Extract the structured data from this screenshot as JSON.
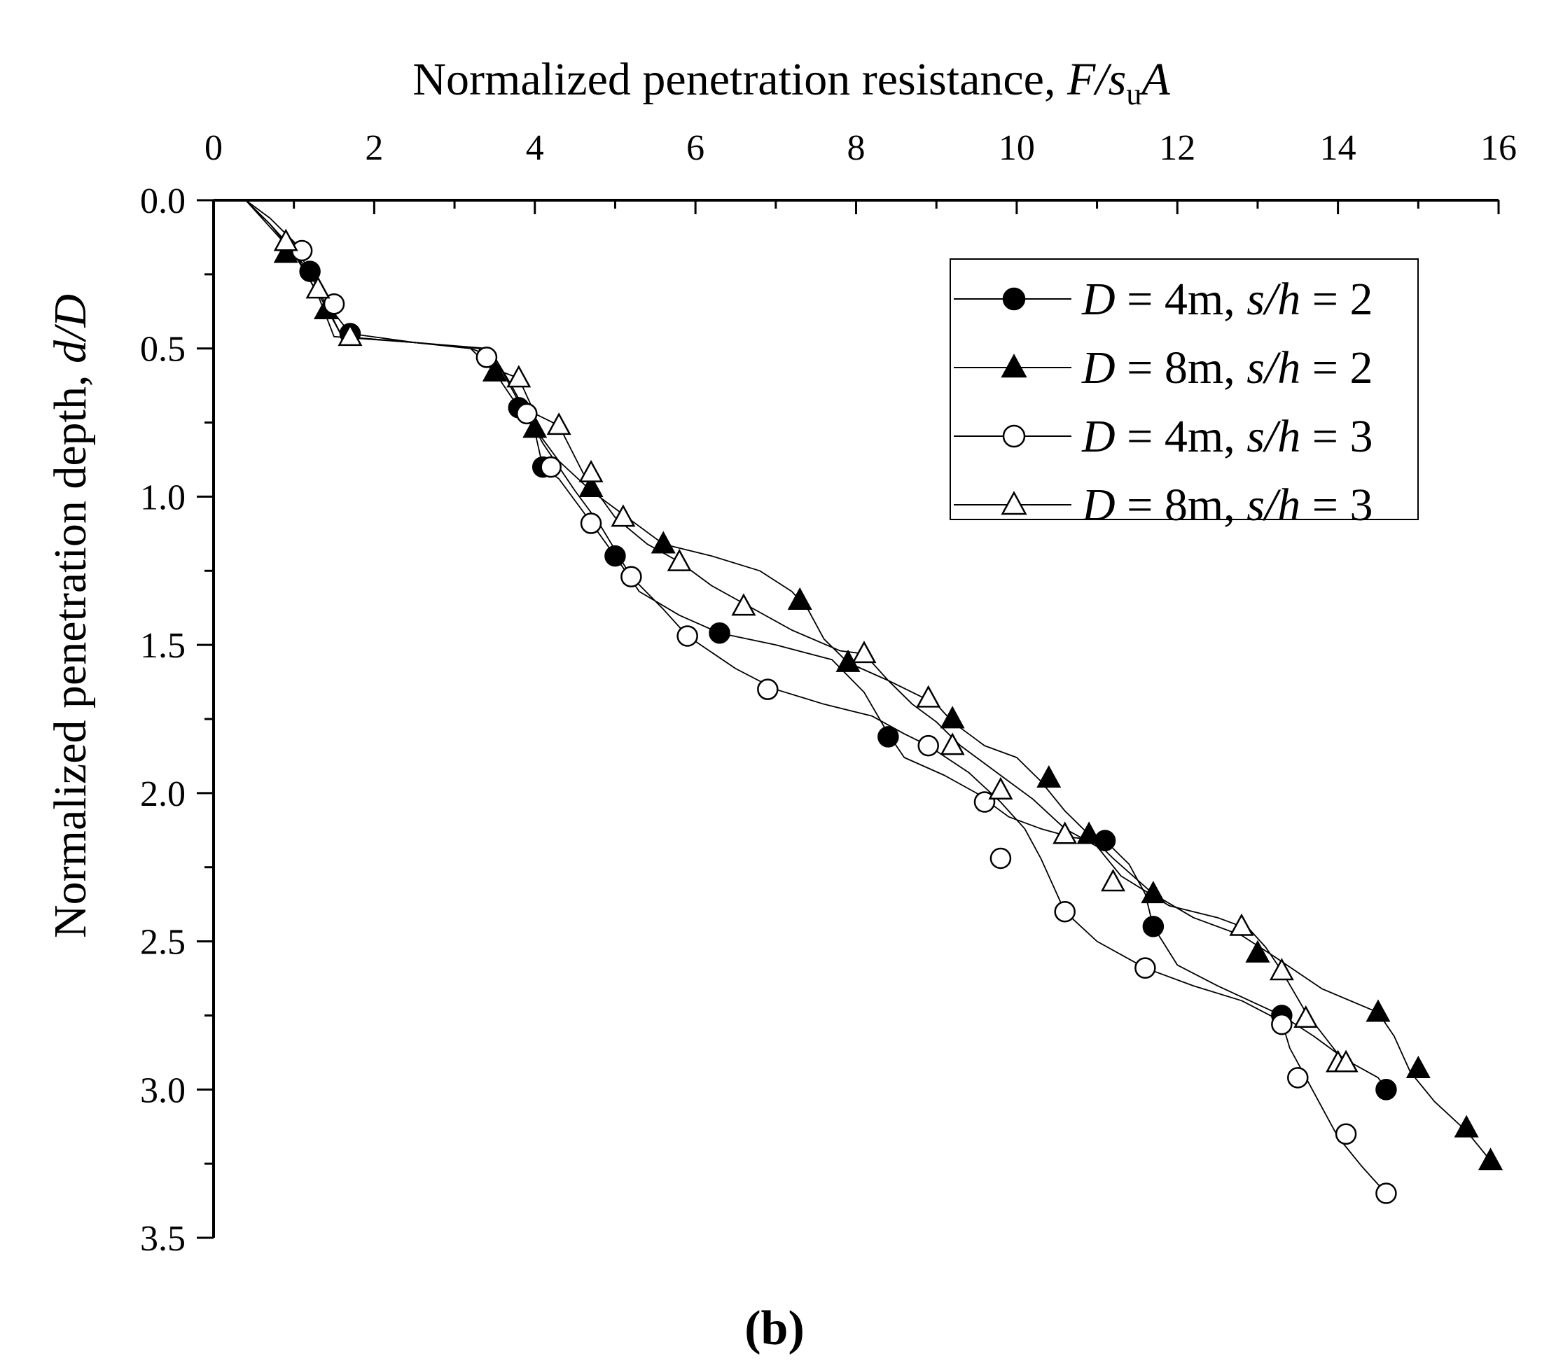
{
  "chart_data": {
    "type": "line",
    "panel_label": "(b)",
    "xaxis": {
      "title_prefix": "Normalized penetration resistance, ",
      "title_symbol": "F/s",
      "title_sub": "u",
      "title_suffix": "A",
      "position": "top",
      "range": [
        0,
        16
      ],
      "ticks": [
        0,
        2,
        4,
        6,
        8,
        10,
        12,
        14,
        16
      ],
      "tick_labels": [
        "0",
        "2",
        "4",
        "6",
        "8",
        "10",
        "12",
        "14",
        "16"
      ]
    },
    "yaxis": {
      "title_prefix": "Normalized penetration depth, ",
      "title_symbol": "d/D",
      "inverted": true,
      "range": [
        0,
        3.5
      ],
      "ticks": [
        0,
        0.5,
        1.0,
        1.5,
        2.0,
        2.5,
        3.0,
        3.5
      ],
      "tick_labels": [
        "0.0",
        "0.5",
        "1.0",
        "1.5",
        "2.0",
        "2.5",
        "3.0",
        "3.5"
      ]
    },
    "grid": false,
    "legend": {
      "placement": "top-right",
      "entries": [
        {
          "D": "D",
          "eq1": " = 4m, ",
          "sh": "s/h",
          "eq2": " = 2"
        },
        {
          "D": "D",
          "eq1": " = 8m, ",
          "sh": "s/h",
          "eq2": " = 2"
        },
        {
          "D": "D",
          "eq1": " = 4m, ",
          "sh": "s/h",
          "eq2": " = 3"
        },
        {
          "D": "D",
          "eq1": " = 8m, ",
          "sh": "s/h",
          "eq2": " = 3"
        }
      ]
    },
    "series": [
      {
        "name": "D = 4m, s/h = 2",
        "marker": "circle-filled",
        "x": [
          0,
          0.4,
          0.8,
          1.2,
          1.5,
          1.7,
          2.5,
          3.3,
          3.6,
          3.8,
          4.0,
          4.1,
          4.3,
          4.6,
          5.0,
          5.3,
          5.8,
          6.3,
          7.0,
          7.7,
          8.1,
          8.4,
          8.6,
          9.1,
          9.5,
          9.9,
          10.3,
          10.7,
          11.1,
          11.4,
          11.6,
          11.7,
          12.0,
          12.5,
          12.9,
          13.3,
          13.7,
          14.1,
          14.5,
          14.6
        ],
        "y": [
          0,
          0.0,
          0.12,
          0.24,
          0.38,
          0.45,
          0.48,
          0.5,
          0.58,
          0.68,
          0.78,
          0.9,
          0.94,
          1.05,
          1.2,
          1.32,
          1.4,
          1.46,
          1.5,
          1.55,
          1.66,
          1.8,
          1.88,
          1.94,
          2.0,
          2.08,
          2.12,
          2.15,
          2.16,
          2.24,
          2.34,
          2.45,
          2.58,
          2.65,
          2.7,
          2.75,
          2.82,
          2.9,
          2.96,
          3.0
        ],
        "markers_x": [
          1.2,
          1.7,
          3.8,
          4.1,
          5.0,
          6.3,
          8.4,
          11.1,
          11.7,
          13.3,
          14.6
        ],
        "markers_y": [
          0.24,
          0.45,
          0.7,
          0.9,
          1.2,
          1.46,
          1.81,
          2.16,
          2.45,
          2.75,
          3.0
        ]
      },
      {
        "name": "D = 8m, s/h = 2",
        "marker": "triangle-filled",
        "x": [
          0,
          0.4,
          0.7,
          1.0,
          1.4,
          1.6,
          2.5,
          3.2,
          3.5,
          3.8,
          4.0,
          4.3,
          4.7,
          5.2,
          5.6,
          6.2,
          6.8,
          7.2,
          7.4,
          7.6,
          7.9,
          8.4,
          9.0,
          9.2,
          9.6,
          10.0,
          10.3,
          10.6,
          10.9,
          11.2,
          11.7,
          12.2,
          12.8,
          13.2,
          13.8,
          14.5,
          14.7,
          14.9,
          15.2,
          15.6,
          15.9
        ],
        "y": [
          0,
          0.0,
          0.08,
          0.18,
          0.36,
          0.46,
          0.48,
          0.5,
          0.58,
          0.7,
          0.77,
          0.88,
          0.98,
          1.08,
          1.16,
          1.2,
          1.25,
          1.32,
          1.38,
          1.48,
          1.56,
          1.62,
          1.7,
          1.76,
          1.84,
          1.88,
          1.96,
          2.06,
          2.14,
          2.22,
          2.34,
          2.42,
          2.48,
          2.55,
          2.66,
          2.74,
          2.82,
          2.94,
          3.04,
          3.14,
          3.24
        ],
        "markers_x": [
          0.9,
          1.4,
          3.5,
          4.0,
          4.7,
          5.6,
          7.3,
          7.9,
          9.2,
          10.4,
          10.9,
          11.7,
          13.0,
          14.5,
          15.0,
          15.6,
          15.9
        ],
        "markers_y": [
          0.18,
          0.37,
          0.58,
          0.77,
          0.97,
          1.16,
          1.35,
          1.56,
          1.75,
          1.95,
          2.14,
          2.34,
          2.54,
          2.74,
          2.93,
          3.13,
          3.24
        ]
      },
      {
        "name": "D = 4m, s/h = 3",
        "marker": "circle-open",
        "x": [
          0,
          0.4,
          0.7,
          1.0,
          1.3,
          1.5,
          2.5,
          3.2,
          3.5,
          3.7,
          3.9,
          4.1,
          4.3,
          4.5,
          4.8,
          5.2,
          5.6,
          5.9,
          6.5,
          7.0,
          7.6,
          8.2,
          8.6,
          8.9,
          9.4,
          9.8,
          10.1,
          10.3,
          10.6,
          11.0,
          11.6,
          12.2,
          12.8,
          13.3,
          13.4,
          13.6,
          13.8,
          14.0,
          14.3,
          14.6
        ],
        "y": [
          0,
          0.0,
          0.08,
          0.17,
          0.32,
          0.46,
          0.48,
          0.5,
          0.53,
          0.62,
          0.72,
          0.82,
          0.9,
          0.98,
          1.09,
          1.27,
          1.38,
          1.47,
          1.58,
          1.65,
          1.7,
          1.74,
          1.8,
          1.84,
          1.93,
          2.03,
          2.12,
          2.22,
          2.4,
          2.5,
          2.59,
          2.65,
          2.7,
          2.77,
          2.86,
          2.96,
          3.06,
          3.16,
          3.26,
          3.35
        ],
        "markers_x": [
          1.1,
          1.5,
          3.4,
          3.9,
          4.2,
          4.7,
          5.2,
          5.9,
          6.9,
          8.9,
          9.6,
          9.8,
          10.6,
          11.6,
          13.3,
          13.5,
          14.1,
          14.6
        ],
        "markers_y": [
          0.17,
          0.35,
          0.53,
          0.72,
          0.9,
          1.09,
          1.27,
          1.47,
          1.65,
          1.84,
          2.03,
          2.22,
          2.4,
          2.59,
          2.78,
          2.96,
          3.15,
          3.35
        ]
      },
      {
        "name": "D = 8m, s/h = 3",
        "marker": "triangle-open",
        "x": [
          0,
          0.4,
          0.7,
          1.0,
          1.3,
          1.6,
          2.5,
          3.4,
          3.6,
          3.8,
          4.0,
          4.3,
          4.6,
          5.0,
          5.4,
          5.8,
          6.2,
          6.6,
          7.2,
          7.8,
          8.1,
          8.4,
          8.7,
          9.0,
          9.3,
          9.8,
          10.2,
          10.6,
          11.0,
          11.3,
          11.9,
          12.5,
          12.9,
          13.1,
          13.3,
          13.6,
          14.0,
          14.1
        ],
        "y": [
          0,
          0.0,
          0.06,
          0.14,
          0.3,
          0.46,
          0.48,
          0.5,
          0.58,
          0.6,
          0.72,
          0.76,
          0.92,
          1.07,
          1.16,
          1.22,
          1.3,
          1.36,
          1.45,
          1.52,
          1.53,
          1.62,
          1.7,
          1.76,
          1.84,
          1.94,
          2.02,
          2.12,
          2.18,
          2.28,
          2.38,
          2.42,
          2.46,
          2.52,
          2.6,
          2.74,
          2.88,
          2.91
        ],
        "markers_x": [
          0.9,
          1.3,
          1.7,
          3.8,
          4.3,
          4.7,
          5.1,
          5.8,
          6.6,
          8.1,
          8.9,
          9.2,
          9.8,
          10.6,
          11.2,
          12.8,
          13.3,
          13.6,
          14.0,
          14.1
        ],
        "markers_y": [
          0.14,
          0.3,
          0.46,
          0.6,
          0.76,
          0.92,
          1.07,
          1.22,
          1.37,
          1.53,
          1.68,
          1.84,
          1.99,
          2.14,
          2.3,
          2.45,
          2.6,
          2.76,
          2.91,
          2.91
        ]
      }
    ]
  }
}
